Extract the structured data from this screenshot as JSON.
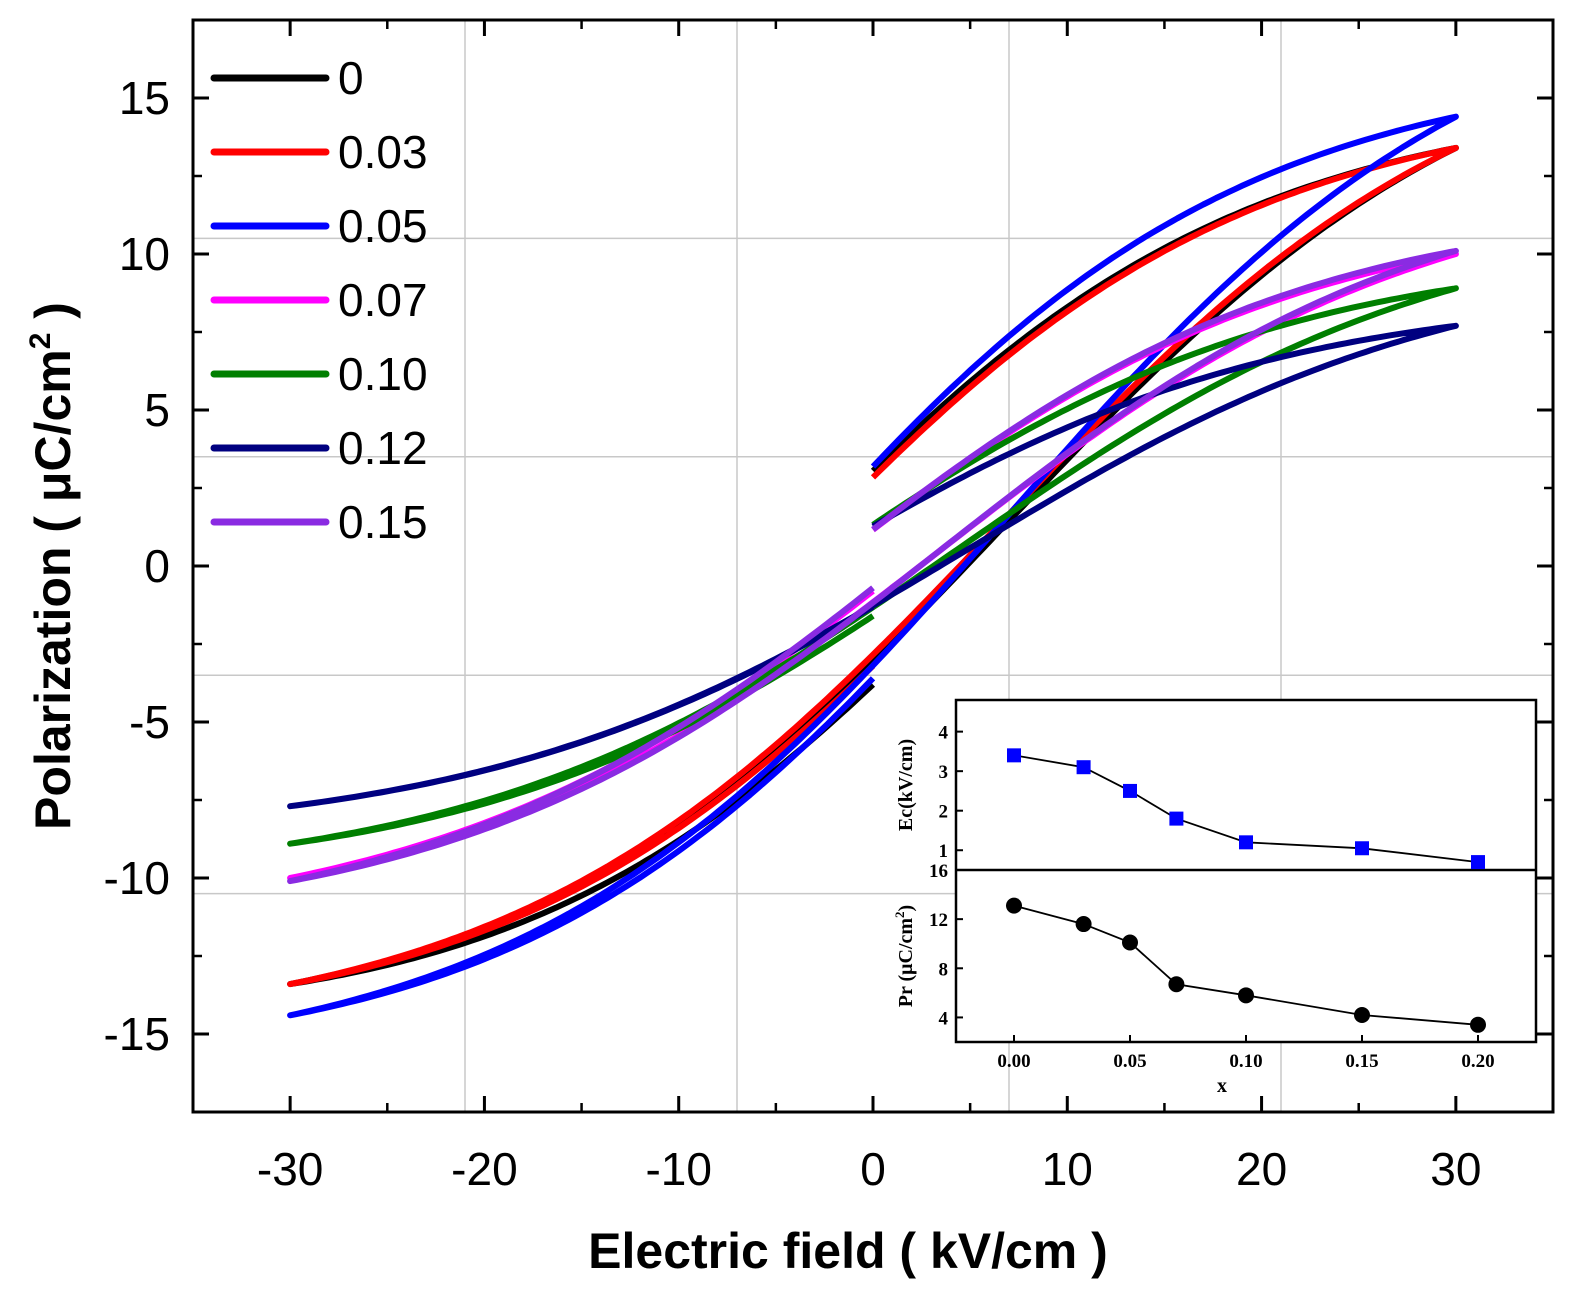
{
  "chart_data": [
    {
      "type": "line",
      "title": "",
      "xlabel": "Electric field ( kV/cm )",
      "ylabel": "Polarization ( μC/cm² )",
      "ylabel_parts": {
        "main": "Polarization ( μC/cm",
        "sup": "2",
        "end": " )"
      },
      "xlim": [
        -35,
        35
      ],
      "ylim": [
        -17.5,
        17.5
      ],
      "xticks": [
        -30,
        -20,
        -10,
        0,
        10,
        20,
        30
      ],
      "yticks": [
        -15,
        -10,
        -5,
        0,
        5,
        10,
        15
      ],
      "grid": true,
      "legend": "top-left",
      "series": [
        {
          "name": "0",
          "color": "#000000",
          "Emax": 30,
          "Pmax": 13.4,
          "Pr": 4.8,
          "Ec": 7.0,
          "Pstart": -3.8
        },
        {
          "name": "0.03",
          "color": "#ff0000",
          "Emax": 30,
          "Pmax": 13.4,
          "Pr": 4.0,
          "Ec": 6.5,
          "Pstart": -3.2
        },
        {
          "name": "0.05",
          "color": "#0000ff",
          "Emax": 30,
          "Pmax": 14.4,
          "Pr": 4.5,
          "Ec": 6.8,
          "Pstart": -3.6
        },
        {
          "name": "0.07",
          "color": "#ff00ff",
          "Emax": 30,
          "Pmax": 10.0,
          "Pr": 1.2,
          "Ec": 3.5,
          "Pstart": -0.8
        },
        {
          "name": "0.10",
          "color": "#007f00",
          "Emax": 30,
          "Pmax": 8.9,
          "Pr": 1.6,
          "Ec": 4.5,
          "Pstart": -1.6
        },
        {
          "name": "0.12",
          "color": "#000080",
          "Emax": 30,
          "Pmax": 7.7,
          "Pr": 1.4,
          "Ec": 5.0,
          "Pstart": -1.3
        },
        {
          "name": "0.15",
          "color": "#8a2be2",
          "Emax": 30,
          "Pmax": 10.1,
          "Pr": 1.2,
          "Ec": 3.5,
          "Pstart": -0.7
        }
      ]
    },
    {
      "type": "scatter",
      "title": "",
      "xlabel": "x",
      "ylabel": "Ec(kV/cm)",
      "xlim": [
        -0.025,
        0.225
      ],
      "ylim": [
        0.5,
        4.8
      ],
      "yticks": [
        1,
        2,
        3,
        4
      ],
      "marker": "square",
      "color": "#0000ff",
      "x": [
        0.0,
        0.03,
        0.05,
        0.07,
        0.1,
        0.15,
        0.2
      ],
      "values": [
        3.4,
        3.1,
        2.5,
        1.8,
        1.2,
        1.05,
        0.7
      ]
    },
    {
      "type": "scatter",
      "title": "",
      "xlabel": "x",
      "ylabel": "Pr (μC/cm²)",
      "ylabel_parts": {
        "main": "Pr (μC/cm",
        "sup": "2",
        "end": ")"
      },
      "xlim": [
        -0.025,
        0.225
      ],
      "ylim": [
        2,
        16
      ],
      "yticks": [
        4,
        8,
        12,
        16
      ],
      "xticks": [
        "0.00",
        "0.05",
        "0.10",
        "0.15",
        "0.20"
      ],
      "marker": "circle",
      "color": "#000000",
      "x": [
        0.0,
        0.03,
        0.05,
        0.07,
        0.1,
        0.15,
        0.2
      ],
      "values": [
        13.1,
        11.6,
        10.1,
        6.7,
        5.8,
        4.2,
        3.4
      ]
    }
  ]
}
